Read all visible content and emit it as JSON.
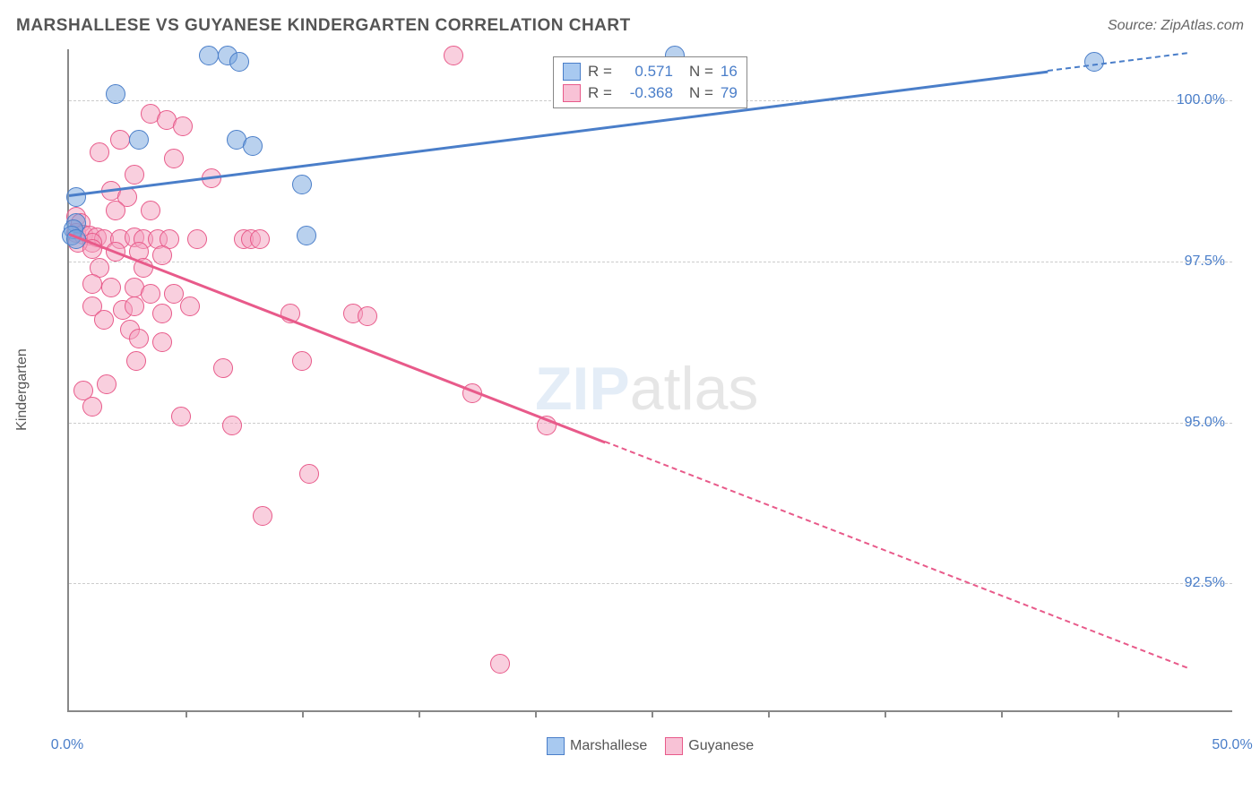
{
  "title": "MARSHALLESE VS GUYANESE KINDERGARTEN CORRELATION CHART",
  "source": "Source: ZipAtlas.com",
  "ylabel": "Kindergarten",
  "watermark": {
    "part1": "ZIP",
    "part2": "atlas"
  },
  "chart": {
    "xlim": [
      0,
      50
    ],
    "ylim": [
      90.5,
      100.8
    ],
    "yticks": [
      {
        "v": 100.0,
        "label": "100.0%"
      },
      {
        "v": 97.5,
        "label": "97.5%"
      },
      {
        "v": 95.0,
        "label": "95.0%"
      },
      {
        "v": 92.5,
        "label": "92.5%"
      }
    ],
    "xticks_minor": [
      5,
      10,
      15,
      20,
      25,
      30,
      35,
      40,
      45
    ],
    "xticks_label": [
      {
        "v": 0,
        "label": "0.0%"
      },
      {
        "v": 50,
        "label": "50.0%"
      }
    ],
    "series": [
      {
        "name": "Marshallese",
        "color_fill": "rgba(116,164,222,0.5)",
        "color_stroke": "#4a7ec9",
        "swatch_fill": "#a8c9f0",
        "swatch_border": "#4a7ec9",
        "R": "0.571",
        "N": "16",
        "trend": {
          "x1": 0,
          "y1": 98.55,
          "x2": 48,
          "y2": 100.75,
          "solid_until_x": 42
        },
        "points": [
          {
            "x": 6.0,
            "y": 100.7
          },
          {
            "x": 6.8,
            "y": 100.7
          },
          {
            "x": 7.3,
            "y": 100.6
          },
          {
            "x": 26.0,
            "y": 100.7
          },
          {
            "x": 44.0,
            "y": 100.6
          },
          {
            "x": 2.0,
            "y": 100.1
          },
          {
            "x": 3.0,
            "y": 99.4
          },
          {
            "x": 7.2,
            "y": 99.4
          },
          {
            "x": 7.9,
            "y": 99.3
          },
          {
            "x": 10.0,
            "y": 98.7
          },
          {
            "x": 10.2,
            "y": 97.9
          },
          {
            "x": 0.3,
            "y": 98.5
          },
          {
            "x": 0.3,
            "y": 98.1
          },
          {
            "x": 0.2,
            "y": 98.0
          },
          {
            "x": 0.1,
            "y": 97.9
          },
          {
            "x": 0.3,
            "y": 97.85
          }
        ]
      },
      {
        "name": "Guyanese",
        "color_fill": "rgba(244,160,190,0.5)",
        "color_stroke": "#e85a8a",
        "swatch_fill": "#f8c2d6",
        "swatch_border": "#e85a8a",
        "R": "-0.368",
        "N": "79",
        "trend": {
          "x1": 0,
          "y1": 97.95,
          "x2": 48,
          "y2": 91.2,
          "solid_until_x": 23
        },
        "points": [
          {
            "x": 16.5,
            "y": 100.7
          },
          {
            "x": 3.5,
            "y": 99.8
          },
          {
            "x": 4.2,
            "y": 99.7
          },
          {
            "x": 4.9,
            "y": 99.6
          },
          {
            "x": 2.2,
            "y": 99.4
          },
          {
            "x": 1.3,
            "y": 99.2
          },
          {
            "x": 4.5,
            "y": 99.1
          },
          {
            "x": 2.8,
            "y": 98.85
          },
          {
            "x": 6.1,
            "y": 98.8
          },
          {
            "x": 1.8,
            "y": 98.6
          },
          {
            "x": 2.5,
            "y": 98.5
          },
          {
            "x": 2.0,
            "y": 98.3
          },
          {
            "x": 3.5,
            "y": 98.3
          },
          {
            "x": 0.3,
            "y": 98.2
          },
          {
            "x": 0.5,
            "y": 98.1
          },
          {
            "x": 0.3,
            "y": 97.95
          },
          {
            "x": 0.6,
            "y": 97.92
          },
          {
            "x": 0.9,
            "y": 97.9
          },
          {
            "x": 1.2,
            "y": 97.88
          },
          {
            "x": 1.5,
            "y": 97.85
          },
          {
            "x": 1.0,
            "y": 97.8
          },
          {
            "x": 0.4,
            "y": 97.8
          },
          {
            "x": 2.2,
            "y": 97.85
          },
          {
            "x": 2.8,
            "y": 97.88
          },
          {
            "x": 3.2,
            "y": 97.85
          },
          {
            "x": 3.8,
            "y": 97.85
          },
          {
            "x": 4.3,
            "y": 97.85
          },
          {
            "x": 5.5,
            "y": 97.85
          },
          {
            "x": 7.5,
            "y": 97.85
          },
          {
            "x": 7.8,
            "y": 97.85
          },
          {
            "x": 8.2,
            "y": 97.85
          },
          {
            "x": 1.0,
            "y": 97.7
          },
          {
            "x": 2.0,
            "y": 97.65
          },
          {
            "x": 3.0,
            "y": 97.65
          },
          {
            "x": 4.0,
            "y": 97.6
          },
          {
            "x": 1.3,
            "y": 97.4
          },
          {
            "x": 3.2,
            "y": 97.4
          },
          {
            "x": 1.0,
            "y": 97.15
          },
          {
            "x": 1.8,
            "y": 97.1
          },
          {
            "x": 2.8,
            "y": 97.1
          },
          {
            "x": 3.5,
            "y": 97.0
          },
          {
            "x": 4.5,
            "y": 97.0
          },
          {
            "x": 1.0,
            "y": 96.8
          },
          {
            "x": 2.3,
            "y": 96.75
          },
          {
            "x": 2.8,
            "y": 96.8
          },
          {
            "x": 4.0,
            "y": 96.7
          },
          {
            "x": 5.2,
            "y": 96.8
          },
          {
            "x": 1.5,
            "y": 96.6
          },
          {
            "x": 2.6,
            "y": 96.45
          },
          {
            "x": 9.5,
            "y": 96.7
          },
          {
            "x": 12.2,
            "y": 96.7
          },
          {
            "x": 12.8,
            "y": 96.65
          },
          {
            "x": 3.0,
            "y": 96.3
          },
          {
            "x": 4.0,
            "y": 96.25
          },
          {
            "x": 2.9,
            "y": 95.95
          },
          {
            "x": 6.6,
            "y": 95.85
          },
          {
            "x": 10.0,
            "y": 95.95
          },
          {
            "x": 1.6,
            "y": 95.6
          },
          {
            "x": 0.6,
            "y": 95.5
          },
          {
            "x": 1.0,
            "y": 95.25
          },
          {
            "x": 4.8,
            "y": 95.1
          },
          {
            "x": 7.0,
            "y": 94.95
          },
          {
            "x": 17.3,
            "y": 95.45
          },
          {
            "x": 20.5,
            "y": 94.95
          },
          {
            "x": 10.3,
            "y": 94.2
          },
          {
            "x": 8.3,
            "y": 93.55
          },
          {
            "x": 18.5,
            "y": 91.25
          }
        ]
      }
    ],
    "bottom_legend": [
      {
        "label": "Marshallese",
        "fill": "#a8c9f0",
        "border": "#4a7ec9"
      },
      {
        "label": "Guyanese",
        "fill": "#f8c2d6",
        "border": "#e85a8a"
      }
    ],
    "stat_val_color": "#4a7ec9"
  }
}
